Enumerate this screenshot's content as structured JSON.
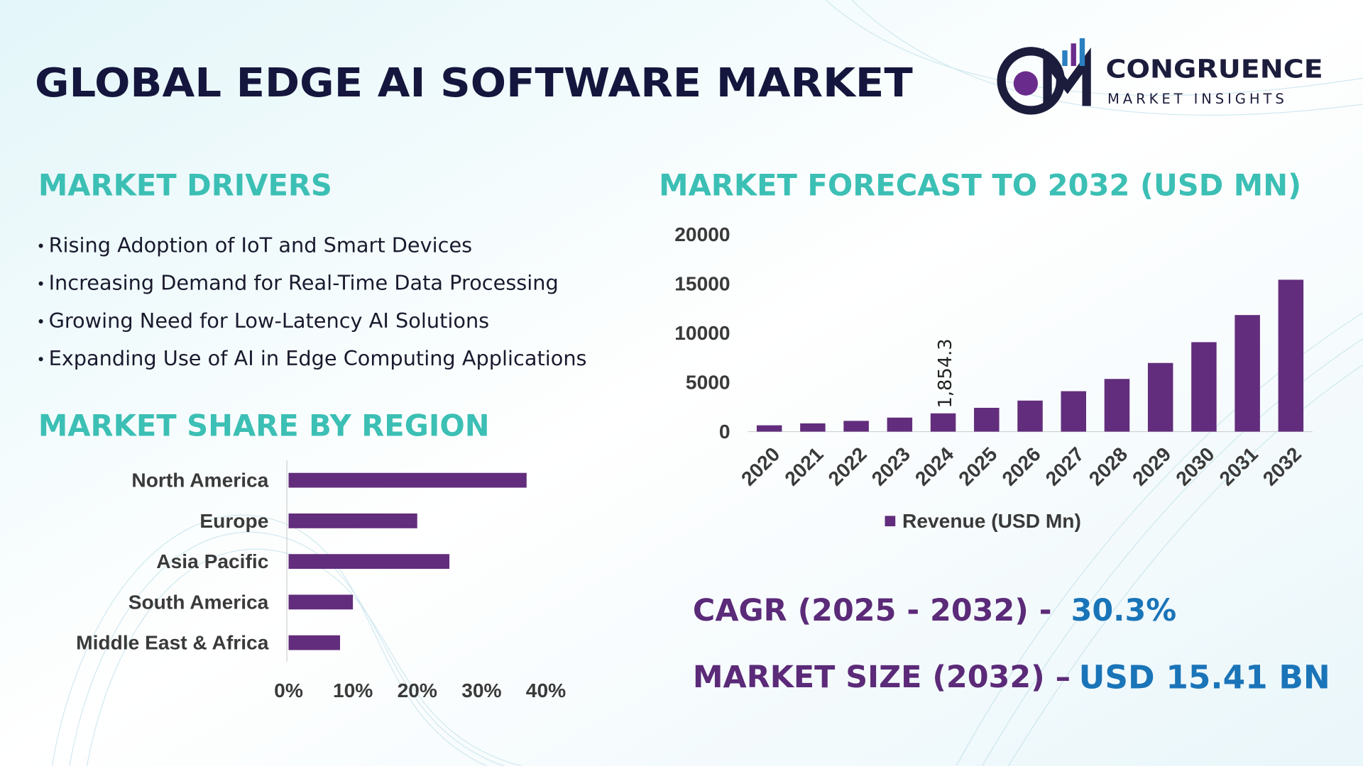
{
  "header": {
    "title": "GLOBAL EDGE AI SOFTWARE MARKET",
    "logo_name": "CONGRUENCE",
    "logo_tagline": "MARKET INSIGHTS"
  },
  "drivers": {
    "heading": "MARKET DRIVERS",
    "items": [
      "Rising Adoption of IoT and Smart Devices",
      "Increasing Demand for Real-Time Data Processing",
      "Growing Need for Low-Latency AI Solutions",
      "Expanding Use of AI in Edge Computing Applications"
    ]
  },
  "chart_data": [
    {
      "type": "bar",
      "title": "MARKET FORECAST TO 2032 (USD MN)",
      "categories": [
        "2020",
        "2021",
        "2022",
        "2023",
        "2024",
        "2025",
        "2026",
        "2027",
        "2028",
        "2029",
        "2030",
        "2031",
        "2032"
      ],
      "series": [
        {
          "name": "Revenue (USD Mn)",
          "color": "#622d7c",
          "values": [
            643,
            838,
            1092,
            1423,
            1854.3,
            2416,
            3149,
            4103,
            5346,
            6966,
            9077,
            11828,
            15410
          ]
        }
      ],
      "value_labels": [
        null,
        null,
        null,
        null,
        "1,854.3",
        null,
        null,
        null,
        null,
        null,
        null,
        null,
        null
      ],
      "ylim": [
        0,
        20000
      ],
      "yticks": [
        0,
        5000,
        10000,
        15000,
        20000
      ],
      "legend": "bottom"
    },
    {
      "type": "hbar",
      "title": "MARKET SHARE BY REGION",
      "categories": [
        "North America",
        "Europe",
        "Asia Pacific",
        "South America",
        "Middle East & Africa"
      ],
      "values": [
        37,
        20,
        25,
        10,
        8
      ],
      "color": "#622d7c",
      "xlim": [
        0,
        40
      ],
      "xticks": [
        {
          "value": 0,
          "label": "0%"
        },
        {
          "value": 10,
          "label": "10%"
        },
        {
          "value": 20,
          "label": "20%"
        },
        {
          "value": 30,
          "label": "30%"
        },
        {
          "value": 40,
          "label": "40%"
        }
      ]
    }
  ],
  "stats": {
    "cagr_label": "CAGR (2025 - 2032) -",
    "cagr_value": "30.3%",
    "size_label": "MARKET SIZE (2032) –",
    "size_value": "USD 15.41 BN"
  }
}
